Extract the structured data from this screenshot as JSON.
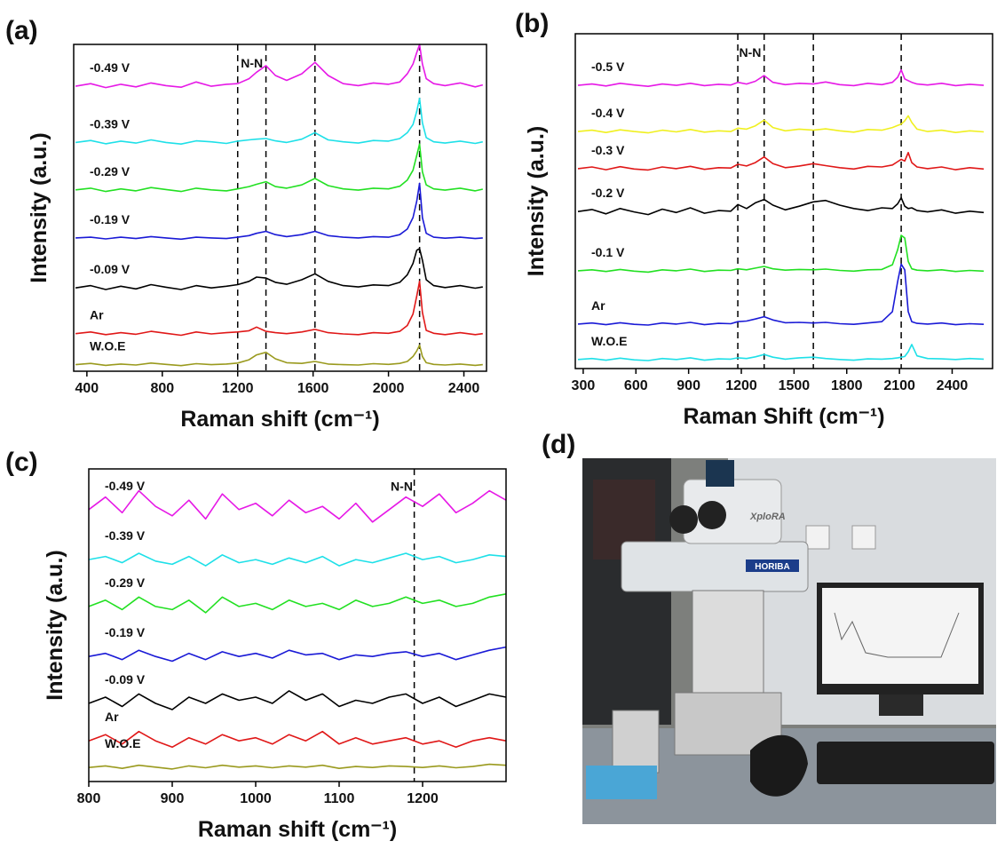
{
  "chart_data": [
    {
      "type": "line",
      "panel_label": "(a)",
      "x_label": "Raman shift (cm⁻¹)",
      "y_label": "Intensity (a.u.)",
      "xlim": [
        330,
        2520
      ],
      "xticks": [
        400,
        800,
        1200,
        1600,
        2000,
        2400
      ],
      "ylim": [
        0,
        10
      ],
      "vlines": [
        1200,
        1350,
        1610,
        2165
      ],
      "annotations": [
        {
          "text": "N-N",
          "x": 1275
        }
      ],
      "x": [
        340,
        420,
        500,
        580,
        660,
        740,
        820,
        900,
        980,
        1060,
        1140,
        1200,
        1260,
        1300,
        1350,
        1400,
        1460,
        1540,
        1610,
        1680,
        1760,
        1840,
        1920,
        2000,
        2060,
        2100,
        2130,
        2150,
        2165,
        2180,
        2200,
        2240,
        2300,
        2380,
        2460,
        2500
      ],
      "series": [
        {
          "name": "-0.49 V",
          "color": "#e619e6",
          "values": [
            8.72,
            8.8,
            8.68,
            8.78,
            8.7,
            8.82,
            8.74,
            8.69,
            8.85,
            8.72,
            8.78,
            8.8,
            8.95,
            9.15,
            9.35,
            9.05,
            8.9,
            9.1,
            9.45,
            9.05,
            8.8,
            8.74,
            8.82,
            8.78,
            8.85,
            9.1,
            9.4,
            9.75,
            10.0,
            9.4,
            8.95,
            8.8,
            8.74,
            8.82,
            8.7,
            8.76
          ]
        },
        {
          "name": "-0.39 V",
          "color": "#1ee0e8",
          "values": [
            7.0,
            7.06,
            6.96,
            7.04,
            6.98,
            7.08,
            7.0,
            6.95,
            7.05,
            7.02,
            6.97,
            7.04,
            7.08,
            7.1,
            7.12,
            7.05,
            7.0,
            7.1,
            7.3,
            7.08,
            7.02,
            6.98,
            7.06,
            7.04,
            7.12,
            7.3,
            7.55,
            7.95,
            8.35,
            7.6,
            7.15,
            7.02,
            6.98,
            7.04,
            6.97,
            7.02
          ]
        },
        {
          "name": "-0.29 V",
          "color": "#22e022",
          "values": [
            5.55,
            5.6,
            5.5,
            5.58,
            5.52,
            5.62,
            5.56,
            5.5,
            5.6,
            5.55,
            5.52,
            5.58,
            5.65,
            5.72,
            5.8,
            5.65,
            5.6,
            5.7,
            5.9,
            5.68,
            5.58,
            5.54,
            5.6,
            5.58,
            5.66,
            5.85,
            6.15,
            6.6,
            6.95,
            6.1,
            5.7,
            5.58,
            5.54,
            5.6,
            5.52,
            5.57
          ]
        },
        {
          "name": "-0.19 V",
          "color": "#1a1ad6",
          "values": [
            4.08,
            4.1,
            4.05,
            4.1,
            4.06,
            4.12,
            4.08,
            4.04,
            4.1,
            4.08,
            4.06,
            4.1,
            4.15,
            4.22,
            4.28,
            4.18,
            4.12,
            4.18,
            4.28,
            4.15,
            4.1,
            4.08,
            4.12,
            4.1,
            4.18,
            4.35,
            4.7,
            5.2,
            5.75,
            4.7,
            4.22,
            4.1,
            4.07,
            4.1,
            4.06,
            4.08
          ]
        },
        {
          "name": "-0.09 V",
          "color": "#000000",
          "values": [
            2.55,
            2.62,
            2.5,
            2.6,
            2.52,
            2.65,
            2.57,
            2.5,
            2.62,
            2.55,
            2.6,
            2.65,
            2.75,
            2.88,
            2.85,
            2.72,
            2.66,
            2.8,
            2.98,
            2.75,
            2.62,
            2.58,
            2.64,
            2.62,
            2.72,
            2.95,
            3.3,
            3.7,
            3.75,
            3.4,
            2.8,
            2.62,
            2.56,
            2.62,
            2.54,
            2.58
          ]
        },
        {
          "name": "Ar",
          "color": "#e01818",
          "values": [
            1.15,
            1.2,
            1.12,
            1.18,
            1.13,
            1.22,
            1.16,
            1.1,
            1.2,
            1.14,
            1.18,
            1.2,
            1.24,
            1.35,
            1.22,
            1.18,
            1.15,
            1.2,
            1.28,
            1.18,
            1.14,
            1.12,
            1.18,
            1.16,
            1.22,
            1.4,
            1.75,
            2.3,
            2.75,
            1.8,
            1.25,
            1.16,
            1.12,
            1.18,
            1.12,
            1.15
          ]
        },
        {
          "name": "W.O.E",
          "color": "#9a9a1e",
          "values": [
            0.2,
            0.24,
            0.18,
            0.22,
            0.19,
            0.25,
            0.21,
            0.17,
            0.23,
            0.2,
            0.22,
            0.25,
            0.35,
            0.5,
            0.58,
            0.38,
            0.26,
            0.24,
            0.3,
            0.22,
            0.2,
            0.19,
            0.23,
            0.21,
            0.24,
            0.3,
            0.45,
            0.62,
            0.8,
            0.45,
            0.26,
            0.21,
            0.19,
            0.22,
            0.18,
            0.2
          ]
        }
      ]
    },
    {
      "type": "line",
      "panel_label": "(b)",
      "x_label": "Raman Shift (cm⁻¹)",
      "y_label": "Intensity (a.u.)",
      "xlim": [
        255,
        2630
      ],
      "xticks": [
        300,
        600,
        900,
        1200,
        1500,
        1800,
        2100,
        2400
      ],
      "ylim": [
        0,
        10
      ],
      "vlines": [
        1180,
        1330,
        1610,
        2110
      ],
      "annotations": [
        {
          "text": "N-N",
          "x": 1250
        }
      ],
      "x": [
        270,
        350,
        430,
        510,
        590,
        670,
        750,
        830,
        910,
        990,
        1070,
        1140,
        1180,
        1230,
        1280,
        1330,
        1380,
        1450,
        1530,
        1610,
        1680,
        1760,
        1840,
        1920,
        2000,
        2060,
        2090,
        2110,
        2130,
        2150,
        2170,
        2200,
        2260,
        2340,
        2420,
        2500,
        2580
      ],
      "series": [
        {
          "name": "-0.5 V",
          "color": "#e619e6",
          "values": [
            8.46,
            8.5,
            8.44,
            8.52,
            8.47,
            8.43,
            8.5,
            8.46,
            8.52,
            8.45,
            8.49,
            8.47,
            8.55,
            8.5,
            8.58,
            8.75,
            8.55,
            8.48,
            8.52,
            8.5,
            8.56,
            8.48,
            8.45,
            8.52,
            8.48,
            8.55,
            8.7,
            8.92,
            8.65,
            8.6,
            8.55,
            8.5,
            8.47,
            8.52,
            8.45,
            8.49,
            8.46
          ]
        },
        {
          "name": "-0.4 V",
          "color": "#f0f020",
          "values": [
            7.08,
            7.12,
            7.05,
            7.13,
            7.08,
            7.04,
            7.12,
            7.07,
            7.14,
            7.06,
            7.1,
            7.08,
            7.18,
            7.15,
            7.25,
            7.42,
            7.2,
            7.1,
            7.15,
            7.12,
            7.16,
            7.1,
            7.06,
            7.14,
            7.12,
            7.2,
            7.26,
            7.3,
            7.4,
            7.55,
            7.35,
            7.15,
            7.08,
            7.12,
            7.05,
            7.1,
            7.07
          ]
        },
        {
          "name": "-0.3 V",
          "color": "#e01818",
          "values": [
            5.97,
            6.02,
            5.94,
            6.03,
            5.96,
            5.93,
            6.02,
            5.97,
            6.04,
            5.95,
            6.0,
            5.99,
            6.1,
            6.05,
            6.15,
            6.32,
            6.12,
            6.0,
            6.05,
            6.12,
            6.06,
            6.0,
            5.96,
            6.04,
            6.02,
            6.08,
            6.18,
            6.25,
            6.2,
            6.45,
            6.15,
            6.02,
            5.97,
            6.02,
            5.94,
            6.0,
            5.96
          ]
        },
        {
          "name": "-0.2 V",
          "color": "#000000",
          "values": [
            4.69,
            4.75,
            4.62,
            4.78,
            4.68,
            4.6,
            4.76,
            4.66,
            4.8,
            4.64,
            4.72,
            4.7,
            4.9,
            4.78,
            4.95,
            5.05,
            4.88,
            4.74,
            4.85,
            4.98,
            5.02,
            4.88,
            4.78,
            4.72,
            4.8,
            4.78,
            4.92,
            5.1,
            4.85,
            4.78,
            4.8,
            4.72,
            4.68,
            4.74,
            4.64,
            4.7,
            4.66
          ]
        },
        {
          "name": "-0.1 V",
          "color": "#22e022",
          "values": [
            2.92,
            2.95,
            2.9,
            2.96,
            2.91,
            2.88,
            2.95,
            2.92,
            2.97,
            2.9,
            2.94,
            2.93,
            2.98,
            2.95,
            3.0,
            3.05,
            2.98,
            2.94,
            2.96,
            2.95,
            2.97,
            2.93,
            2.91,
            2.95,
            2.96,
            3.1,
            3.55,
            3.98,
            3.9,
            3.2,
            2.98,
            2.94,
            2.92,
            2.95,
            2.9,
            2.93,
            2.91
          ]
        },
        {
          "name": "Ar",
          "color": "#1a1ad6",
          "values": [
            1.33,
            1.36,
            1.31,
            1.37,
            1.32,
            1.3,
            1.36,
            1.33,
            1.38,
            1.31,
            1.35,
            1.34,
            1.4,
            1.42,
            1.48,
            1.55,
            1.45,
            1.37,
            1.38,
            1.36,
            1.38,
            1.34,
            1.32,
            1.36,
            1.4,
            1.7,
            2.6,
            3.12,
            2.95,
            1.7,
            1.4,
            1.35,
            1.33,
            1.36,
            1.31,
            1.34,
            1.32
          ]
        },
        {
          "name": "W.O.E",
          "color": "#1ee0e8",
          "values": [
            0.27,
            0.3,
            0.25,
            0.31,
            0.26,
            0.24,
            0.3,
            0.27,
            0.32,
            0.25,
            0.29,
            0.28,
            0.32,
            0.3,
            0.35,
            0.42,
            0.34,
            0.28,
            0.32,
            0.34,
            0.3,
            0.27,
            0.25,
            0.29,
            0.28,
            0.3,
            0.32,
            0.34,
            0.36,
            0.5,
            0.72,
            0.38,
            0.3,
            0.29,
            0.27,
            0.3,
            0.28
          ]
        }
      ]
    },
    {
      "type": "line",
      "panel_label": "(c)",
      "x_label": "Raman shift (cm⁻¹)",
      "y_label": "Intensity (a.u.)",
      "xlim": [
        800,
        1300
      ],
      "xticks": [
        800,
        900,
        1000,
        1100,
        1200
      ],
      "ylim": [
        0,
        10
      ],
      "vlines": [
        1190
      ],
      "annotations": [
        {
          "text": "N-N",
          "x": 1175
        }
      ],
      "x": [
        800,
        820,
        840,
        860,
        880,
        900,
        920,
        940,
        960,
        980,
        1000,
        1020,
        1040,
        1060,
        1080,
        1100,
        1120,
        1140,
        1160,
        1180,
        1200,
        1220,
        1240,
        1260,
        1280,
        1300
      ],
      "series": [
        {
          "name": "-0.49 V",
          "color": "#e619e6",
          "values": [
            8.7,
            9.1,
            8.6,
            9.3,
            8.8,
            8.5,
            9.0,
            8.4,
            9.2,
            8.7,
            8.9,
            8.5,
            9.0,
            8.6,
            8.8,
            8.4,
            8.9,
            8.3,
            8.7,
            9.1,
            8.8,
            9.2,
            8.6,
            8.9,
            9.3,
            9.0
          ]
        },
        {
          "name": "-0.39 V",
          "color": "#1ee0e8",
          "values": [
            7.1,
            7.2,
            7.0,
            7.3,
            7.05,
            6.95,
            7.2,
            6.9,
            7.25,
            7.0,
            7.1,
            6.95,
            7.15,
            7.0,
            7.2,
            6.9,
            7.1,
            7.0,
            7.15,
            7.3,
            7.1,
            7.2,
            7.0,
            7.1,
            7.25,
            7.2
          ]
        },
        {
          "name": "-0.29 V",
          "color": "#22e022",
          "values": [
            5.6,
            5.8,
            5.5,
            5.9,
            5.6,
            5.5,
            5.8,
            5.4,
            5.9,
            5.6,
            5.7,
            5.5,
            5.8,
            5.6,
            5.7,
            5.5,
            5.8,
            5.6,
            5.7,
            5.9,
            5.7,
            5.8,
            5.6,
            5.7,
            5.9,
            6.0
          ]
        },
        {
          "name": "-0.19 V",
          "color": "#1a1ad6",
          "values": [
            4.0,
            4.1,
            3.9,
            4.2,
            4.0,
            3.85,
            4.1,
            3.9,
            4.15,
            4.0,
            4.1,
            3.95,
            4.2,
            4.05,
            4.1,
            3.9,
            4.05,
            4.0,
            4.1,
            4.15,
            4.0,
            4.1,
            3.9,
            4.05,
            4.2,
            4.3
          ]
        },
        {
          "name": "-0.09 V",
          "color": "#000000",
          "values": [
            2.5,
            2.7,
            2.4,
            2.8,
            2.5,
            2.3,
            2.7,
            2.5,
            2.8,
            2.6,
            2.7,
            2.5,
            2.9,
            2.6,
            2.8,
            2.4,
            2.6,
            2.5,
            2.7,
            2.8,
            2.5,
            2.7,
            2.4,
            2.6,
            2.8,
            2.7
          ]
        },
        {
          "name": "Ar",
          "color": "#e01818",
          "values": [
            1.3,
            1.5,
            1.2,
            1.6,
            1.3,
            1.1,
            1.4,
            1.2,
            1.5,
            1.3,
            1.4,
            1.2,
            1.5,
            1.3,
            1.6,
            1.2,
            1.4,
            1.2,
            1.3,
            1.4,
            1.2,
            1.3,
            1.1,
            1.3,
            1.4,
            1.3
          ]
        },
        {
          "name": "W.O.E",
          "color": "#9a9a1e",
          "values": [
            0.45,
            0.5,
            0.42,
            0.52,
            0.46,
            0.4,
            0.5,
            0.44,
            0.52,
            0.46,
            0.5,
            0.44,
            0.5,
            0.46,
            0.52,
            0.42,
            0.48,
            0.45,
            0.5,
            0.48,
            0.45,
            0.5,
            0.44,
            0.48,
            0.55,
            0.52
          ]
        }
      ]
    }
  ],
  "photo": {
    "panel_label": "(d)",
    "brand": "HORIBA",
    "model": "XploRA"
  }
}
